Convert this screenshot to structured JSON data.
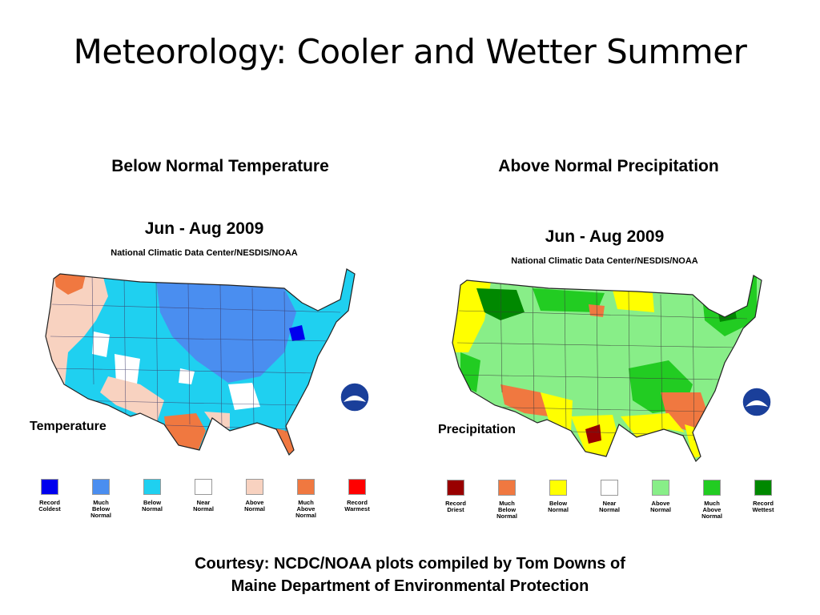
{
  "slide": {
    "title": "Meteorology: Cooler and Wetter Summer",
    "left_caption": "Below Normal Temperature",
    "right_caption": "Above Normal Precipitation",
    "credit_line1": "Courtesy: NCDC/NOAA plots compiled by Tom Downs of",
    "credit_line2": "Maine Department of Environmental Protection"
  },
  "temperature_map": {
    "title": "Jun - Aug 2009",
    "subtitle": "National Climatic Data Center/NESDIS/NOAA",
    "variable_label": "Temperature",
    "legend": [
      {
        "lines": [
          "Record",
          "Coldest"
        ],
        "color": "#0000ee"
      },
      {
        "lines": [
          "Much",
          "Below",
          "Normal"
        ],
        "color": "#4a8ef0"
      },
      {
        "lines": [
          "Below",
          "Normal"
        ],
        "color": "#1fd0f0"
      },
      {
        "lines": [
          "Near",
          "Normal"
        ],
        "color": "#ffffff"
      },
      {
        "lines": [
          "Above",
          "Normal"
        ],
        "color": "#f8d2c0"
      },
      {
        "lines": [
          "Much",
          "Above",
          "Normal"
        ],
        "color": "#f07840"
      },
      {
        "lines": [
          "Record",
          "Warmest"
        ],
        "color": "#ff0000"
      }
    ]
  },
  "precipitation_map": {
    "title": "Jun - Aug 2009",
    "subtitle": "National Climatic Data Center/NESDIS/NOAA",
    "variable_label": "Precipitation",
    "legend": [
      {
        "lines": [
          "Record",
          "Driest"
        ],
        "color": "#990000"
      },
      {
        "lines": [
          "Much",
          "Below",
          "Normal"
        ],
        "color": "#f07840"
      },
      {
        "lines": [
          "Below",
          "Normal"
        ],
        "color": "#ffff00"
      },
      {
        "lines": [
          "Near",
          "Normal"
        ],
        "color": "#ffffff"
      },
      {
        "lines": [
          "Above",
          "Normal"
        ],
        "color": "#88ee88"
      },
      {
        "lines": [
          "Much",
          "Above",
          "Normal"
        ],
        "color": "#22cc22"
      },
      {
        "lines": [
          "Record",
          "Wettest"
        ],
        "color": "#008800"
      }
    ]
  }
}
